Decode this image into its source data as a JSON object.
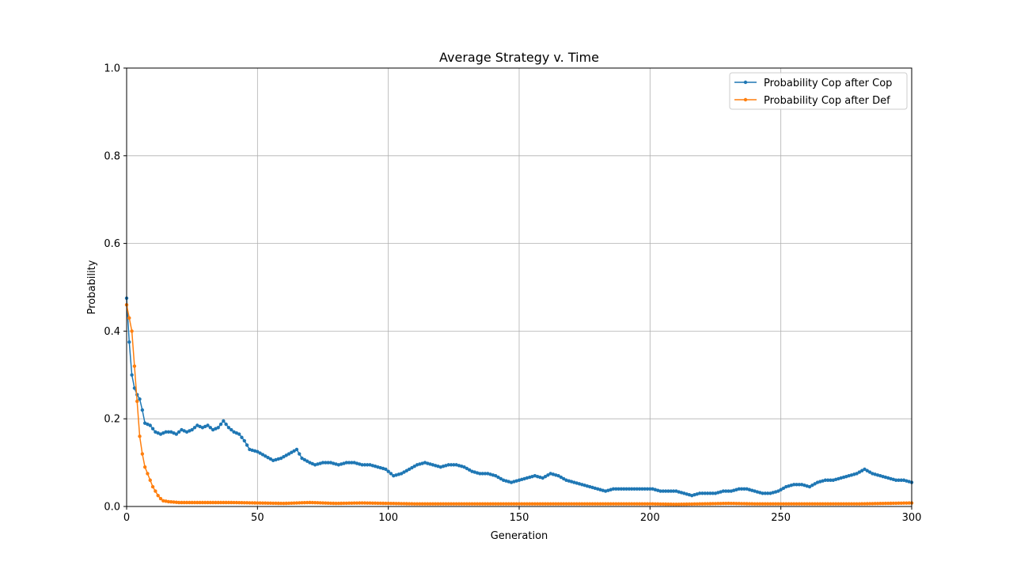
{
  "chart_data": {
    "type": "line",
    "title": "Average Strategy v. Time",
    "xlabel": "Generation",
    "ylabel": "Probability",
    "xlim": [
      0,
      300
    ],
    "ylim": [
      0,
      1.0
    ],
    "xticks": [
      0,
      50,
      100,
      150,
      200,
      250,
      300
    ],
    "yticks": [
      0.0,
      0.2,
      0.4,
      0.6,
      0.8,
      1.0
    ],
    "xtick_labels": [
      "0",
      "50",
      "100",
      "150",
      "200",
      "250",
      "300"
    ],
    "ytick_labels": [
      "0.0",
      "0.2",
      "0.4",
      "0.6",
      "0.8",
      "1.0"
    ],
    "grid": true,
    "legend_position": "top-right",
    "series": [
      {
        "name": "Probability Cop after Cop",
        "color": "#1f77b4",
        "keypoints": [
          [
            0,
            0.475
          ],
          [
            1,
            0.375
          ],
          [
            2,
            0.3
          ],
          [
            3,
            0.27
          ],
          [
            4,
            0.255
          ],
          [
            5,
            0.245
          ],
          [
            6,
            0.22
          ],
          [
            7,
            0.19
          ],
          [
            9,
            0.185
          ],
          [
            11,
            0.17
          ],
          [
            13,
            0.165
          ],
          [
            15,
            0.17
          ],
          [
            17,
            0.17
          ],
          [
            19,
            0.165
          ],
          [
            21,
            0.175
          ],
          [
            23,
            0.17
          ],
          [
            25,
            0.175
          ],
          [
            27,
            0.185
          ],
          [
            29,
            0.18
          ],
          [
            31,
            0.185
          ],
          [
            33,
            0.175
          ],
          [
            35,
            0.18
          ],
          [
            37,
            0.195
          ],
          [
            39,
            0.18
          ],
          [
            41,
            0.17
          ],
          [
            43,
            0.165
          ],
          [
            45,
            0.15
          ],
          [
            47,
            0.13
          ],
          [
            50,
            0.125
          ],
          [
            53,
            0.115
          ],
          [
            56,
            0.105
          ],
          [
            59,
            0.11
          ],
          [
            62,
            0.12
          ],
          [
            65,
            0.13
          ],
          [
            67,
            0.11
          ],
          [
            70,
            0.1
          ],
          [
            72,
            0.095
          ],
          [
            75,
            0.1
          ],
          [
            78,
            0.1
          ],
          [
            81,
            0.095
          ],
          [
            84,
            0.1
          ],
          [
            87,
            0.1
          ],
          [
            90,
            0.095
          ],
          [
            93,
            0.095
          ],
          [
            96,
            0.09
          ],
          [
            99,
            0.085
          ],
          [
            102,
            0.07
          ],
          [
            105,
            0.075
          ],
          [
            108,
            0.085
          ],
          [
            111,
            0.095
          ],
          [
            114,
            0.1
          ],
          [
            117,
            0.095
          ],
          [
            120,
            0.09
          ],
          [
            123,
            0.095
          ],
          [
            126,
            0.095
          ],
          [
            129,
            0.09
          ],
          [
            132,
            0.08
          ],
          [
            135,
            0.075
          ],
          [
            138,
            0.075
          ],
          [
            141,
            0.07
          ],
          [
            144,
            0.06
          ],
          [
            147,
            0.055
          ],
          [
            150,
            0.06
          ],
          [
            153,
            0.065
          ],
          [
            156,
            0.07
          ],
          [
            159,
            0.065
          ],
          [
            162,
            0.075
          ],
          [
            165,
            0.07
          ],
          [
            168,
            0.06
          ],
          [
            171,
            0.055
          ],
          [
            174,
            0.05
          ],
          [
            177,
            0.045
          ],
          [
            180,
            0.04
          ],
          [
            183,
            0.035
          ],
          [
            186,
            0.04
          ],
          [
            189,
            0.04
          ],
          [
            192,
            0.04
          ],
          [
            195,
            0.04
          ],
          [
            198,
            0.04
          ],
          [
            201,
            0.04
          ],
          [
            204,
            0.035
          ],
          [
            207,
            0.035
          ],
          [
            210,
            0.035
          ],
          [
            213,
            0.03
          ],
          [
            216,
            0.025
          ],
          [
            219,
            0.03
          ],
          [
            222,
            0.03
          ],
          [
            225,
            0.03
          ],
          [
            228,
            0.035
          ],
          [
            231,
            0.035
          ],
          [
            234,
            0.04
          ],
          [
            237,
            0.04
          ],
          [
            240,
            0.035
          ],
          [
            243,
            0.03
          ],
          [
            246,
            0.03
          ],
          [
            249,
            0.035
          ],
          [
            252,
            0.045
          ],
          [
            255,
            0.05
          ],
          [
            258,
            0.05
          ],
          [
            261,
            0.045
          ],
          [
            264,
            0.055
          ],
          [
            267,
            0.06
          ],
          [
            270,
            0.06
          ],
          [
            273,
            0.065
          ],
          [
            276,
            0.07
          ],
          [
            279,
            0.075
          ],
          [
            282,
            0.085
          ],
          [
            285,
            0.075
          ],
          [
            288,
            0.07
          ],
          [
            291,
            0.065
          ],
          [
            294,
            0.06
          ],
          [
            297,
            0.06
          ],
          [
            300,
            0.055
          ]
        ]
      },
      {
        "name": "Probability Cop after Def",
        "color": "#ff7f0e",
        "keypoints": [
          [
            0,
            0.46
          ],
          [
            1,
            0.43
          ],
          [
            2,
            0.4
          ],
          [
            3,
            0.32
          ],
          [
            4,
            0.24
          ],
          [
            5,
            0.16
          ],
          [
            6,
            0.12
          ],
          [
            7,
            0.09
          ],
          [
            8,
            0.075
          ],
          [
            9,
            0.06
          ],
          [
            10,
            0.045
          ],
          [
            11,
            0.035
          ],
          [
            12,
            0.025
          ],
          [
            13,
            0.018
          ],
          [
            14,
            0.013
          ],
          [
            16,
            0.011
          ],
          [
            20,
            0.009
          ],
          [
            25,
            0.009
          ],
          [
            30,
            0.009
          ],
          [
            40,
            0.009
          ],
          [
            50,
            0.008
          ],
          [
            60,
            0.007
          ],
          [
            70,
            0.009
          ],
          [
            80,
            0.007
          ],
          [
            90,
            0.008
          ],
          [
            100,
            0.007
          ],
          [
            110,
            0.006
          ],
          [
            120,
            0.006
          ],
          [
            130,
            0.006
          ],
          [
            140,
            0.006
          ],
          [
            150,
            0.006
          ],
          [
            160,
            0.006
          ],
          [
            170,
            0.006
          ],
          [
            180,
            0.006
          ],
          [
            190,
            0.006
          ],
          [
            200,
            0.006
          ],
          [
            210,
            0.005
          ],
          [
            220,
            0.006
          ],
          [
            230,
            0.007
          ],
          [
            240,
            0.006
          ],
          [
            250,
            0.006
          ],
          [
            260,
            0.006
          ],
          [
            270,
            0.006
          ],
          [
            280,
            0.006
          ],
          [
            290,
            0.007
          ],
          [
            300,
            0.008
          ]
        ]
      }
    ]
  }
}
